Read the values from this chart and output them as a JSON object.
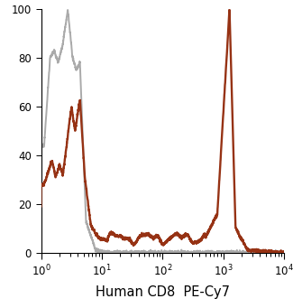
{
  "title": "",
  "xlabel": "Human CD8  PE-Cy7",
  "ylabel": "",
  "xlim_log": [
    1,
    10000
  ],
  "ylim": [
    0,
    100
  ],
  "yticks": [
    0,
    20,
    40,
    60,
    80,
    100
  ],
  "gray_color": "#aaaaaa",
  "orange_color": "#963214",
  "linewidth_gray": 1.4,
  "linewidth_orange": 1.7,
  "background_color": "#ffffff"
}
